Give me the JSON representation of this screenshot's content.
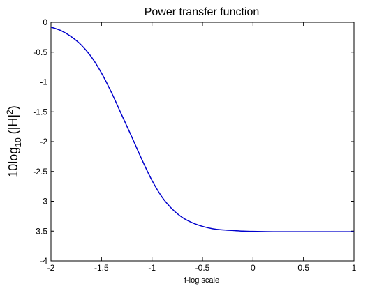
{
  "chart_data": {
    "type": "line",
    "title": "Power transfer function",
    "xlabel": "f-log scale",
    "ylabel": {
      "base": "10log",
      "sub": "10",
      "mid": " (|H|",
      "sup": "2",
      "end": ")"
    },
    "xlim": [
      -2,
      1
    ],
    "ylim": [
      -4,
      0
    ],
    "xticks": [
      -2,
      -1.5,
      -1,
      -0.5,
      0,
      0.5,
      1
    ],
    "xtick_labels": [
      "-2",
      "-1.5",
      "-1",
      "-0.5",
      "0",
      "0.5",
      "1"
    ],
    "yticks": [
      0,
      -0.5,
      -1,
      -1.5,
      -2,
      -2.5,
      -3,
      -3.5,
      -4
    ],
    "ytick_labels": [
      "0",
      "-0.5",
      "-1",
      "-1.5",
      "-2",
      "-2.5",
      "-3",
      "-3.5",
      "-4"
    ],
    "grid": false,
    "series": [
      {
        "color": "#0000cc",
        "x": [
          -2,
          -1.9,
          -1.8,
          -1.7,
          -1.6,
          -1.5,
          -1.4,
          -1.3,
          -1.2,
          -1.1,
          -1.0,
          -0.9,
          -0.8,
          -0.7,
          -0.6,
          -0.5,
          -0.4,
          -0.3,
          -0.2,
          -0.1,
          0,
          0.2,
          0.4,
          0.6,
          0.8,
          1.0
        ],
        "y": [
          -0.08,
          -0.14,
          -0.24,
          -0.38,
          -0.58,
          -0.85,
          -1.18,
          -1.55,
          -1.92,
          -2.3,
          -2.65,
          -2.93,
          -3.13,
          -3.27,
          -3.36,
          -3.42,
          -3.46,
          -3.48,
          -3.49,
          -3.5,
          -3.505,
          -3.51,
          -3.51,
          -3.51,
          -3.51,
          -3.51
        ]
      }
    ]
  }
}
